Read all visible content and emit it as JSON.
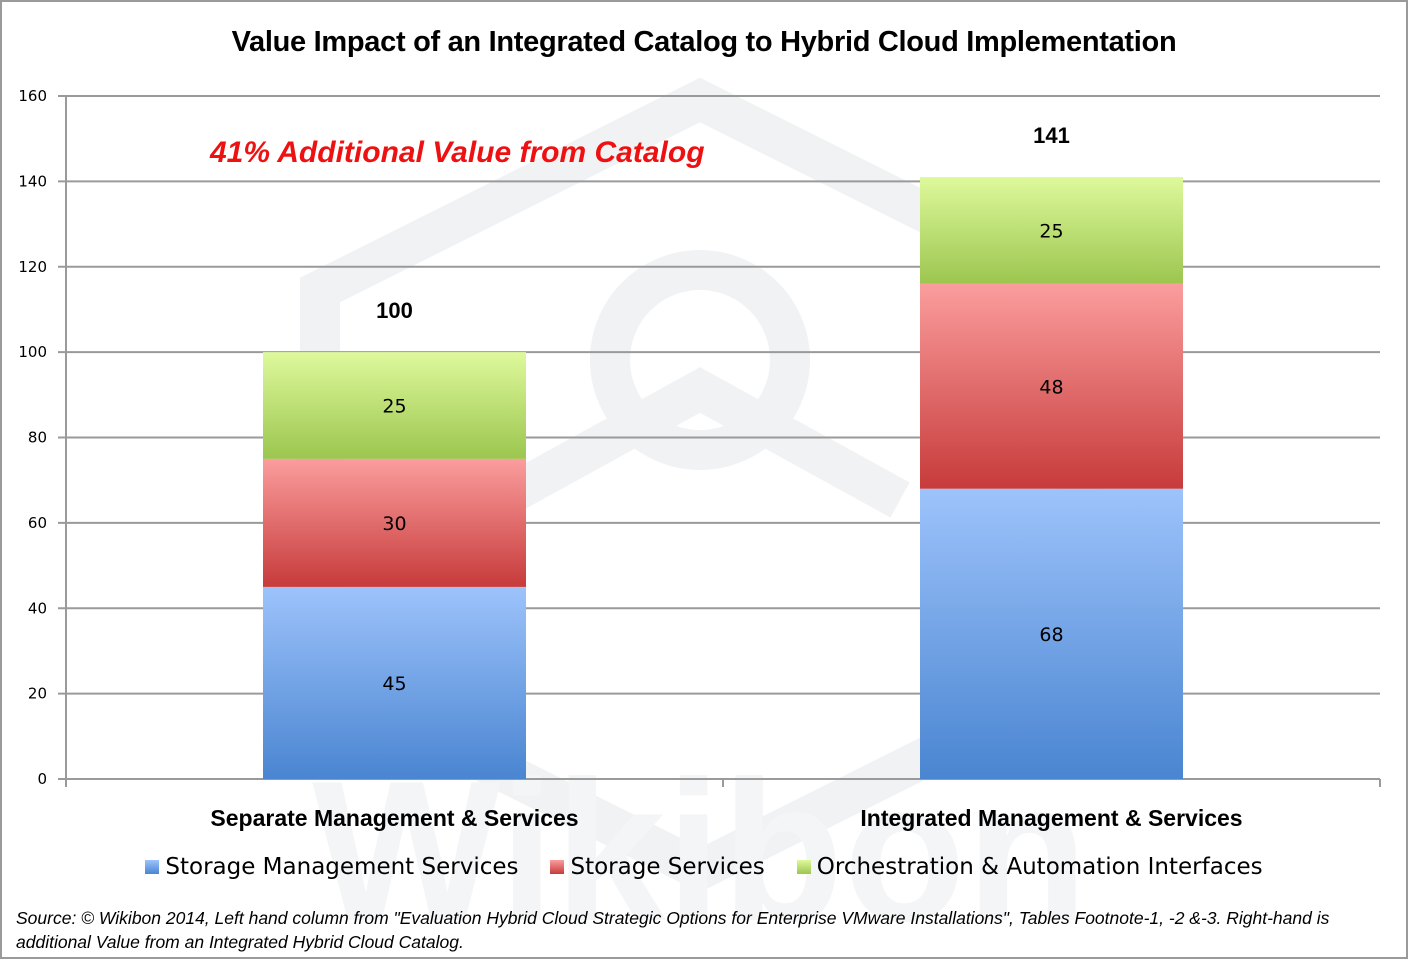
{
  "title": "Value Impact of an Integrated Catalog to Hybrid Cloud Implementation",
  "annotation": "41% Additional Value from Catalog",
  "colors": {
    "storage_management": "#5a90dc",
    "storage_services": "#dc5a5a",
    "orchestration": "#b4d873",
    "annotation": "#ee1111",
    "grid": "#9a9a9a"
  },
  "legend": [
    {
      "label": "Storage Management Services",
      "key": "storage_management"
    },
    {
      "label": "Storage Services",
      "key": "storage_services"
    },
    {
      "label": "Orchestration & Automation Interfaces",
      "key": "orchestration"
    }
  ],
  "source": "Source: © Wikibon 2014, Left hand column from \"Evaluation Hybrid Cloud Strategic Options for Enterprise VMware Installations\", Tables Footnote-1, -2 &-3. Right-hand is additional Value from an Integrated Hybrid Cloud Catalog.",
  "chart_data": {
    "type": "bar",
    "stacked": true,
    "title": "Value Impact of an Integrated Catalog to Hybrid Cloud Implementation",
    "xlabel": "",
    "ylabel": "",
    "categories": [
      "Separate Management & Services",
      "Integrated Management & Services"
    ],
    "series": [
      {
        "name": "Storage Management Services",
        "values": [
          45,
          68
        ]
      },
      {
        "name": "Storage Services",
        "values": [
          30,
          48
        ]
      },
      {
        "name": "Orchestration & Automation Interfaces",
        "values": [
          25,
          25
        ]
      }
    ],
    "totals": [
      100,
      141
    ],
    "ylim": [
      0,
      160
    ],
    "yticks": [
      0,
      20,
      40,
      60,
      80,
      100,
      120,
      140,
      160
    ],
    "grid": true,
    "legend_position": "bottom",
    "annotations": [
      "41% Additional Value from Catalog"
    ]
  }
}
